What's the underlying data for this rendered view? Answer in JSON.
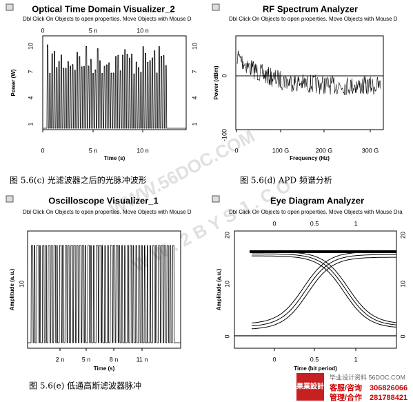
{
  "figures": [
    {
      "title": "Optical Time Domain Visualizer_2",
      "hint": "Dbl Click On Objects to open properties.  Move Objects with Mouse D",
      "x_label": "Time (s)",
      "y_label": "Power (W)",
      "top_ticks": [
        "0",
        "5 n",
        "10 n"
      ],
      "bottom_ticks": [
        "0",
        "5 n",
        "10 n"
      ],
      "left_ticks": [
        "10",
        "7",
        "4",
        "1"
      ],
      "right_ticks": [
        "10",
        "7",
        "4",
        "1"
      ],
      "caption": "图 5.6(c)  光滤波器之后的光脉冲波形"
    },
    {
      "title": "RF Spectrum Analyzer",
      "hint": "Dbl Click On Objects to open properties.  Move Objects with Mouse D",
      "x_label": "Frequency (Hz)",
      "y_label": "Power (dBm)",
      "top_ticks": [],
      "bottom_ticks": [
        "0",
        "100 G",
        "200 G",
        "300 G"
      ],
      "left_ticks": [
        "0",
        "-100"
      ],
      "right_ticks": [],
      "caption": "图 5.6(d)    APD 频谱分析"
    },
    {
      "title": "Oscilloscope Visualizer_1",
      "hint": "Dbl Click On Objects to open properties.  Move Objects with Mouse D",
      "x_label": "Time (s)",
      "y_label": "Amplitude (a.u.)",
      "top_ticks": [],
      "bottom_ticks": [
        "2 n",
        "5 n",
        "8 n",
        "11 n"
      ],
      "left_ticks": [
        "10"
      ],
      "right_ticks": [],
      "caption": "图 5.6(e)  低通高斯滤波器脉冲"
    },
    {
      "title": "Eye Diagram Analyzer",
      "hint": "Dbl Click On Objects to open properties.  Move Objects with Mouse Dra",
      "x_label": "Time (bit period)",
      "y_label": "Amplitude (a.u.)",
      "top_ticks": [
        "0",
        "0.5",
        "1"
      ],
      "bottom_ticks": [
        "0",
        "0.5",
        "1"
      ],
      "left_ticks": [
        "20",
        "10",
        "0"
      ],
      "right_ticks": [
        "20",
        "10",
        "0"
      ],
      "caption": null
    }
  ],
  "watermarks": [
    "WWW.56DOC.COM",
    "W W . 2 B Y S J . C O"
  ],
  "logo": {
    "mark": "果業設計",
    "site": "毕业设计资料 56DOC.COM",
    "line1_label": "客服/咨询",
    "line1_number": "306826066",
    "line2_label": "管理/合作",
    "line2_number": "281788421"
  }
}
